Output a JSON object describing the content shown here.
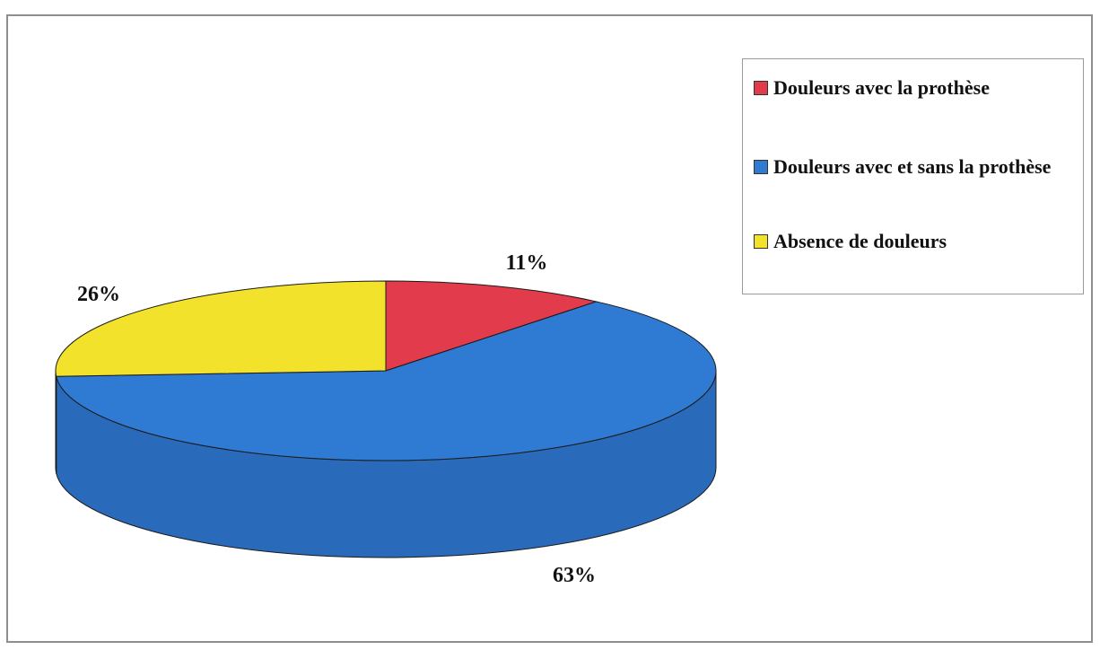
{
  "chart_data": {
    "type": "pie",
    "style": "3d",
    "title": "",
    "categories": [
      "Douleurs avec la prothèse",
      "Douleurs avec et sans la prothèse",
      "Absence de douleurs"
    ],
    "values": [
      11,
      63,
      26
    ],
    "value_labels": [
      "11%",
      "63%",
      "26%"
    ],
    "colors": [
      "#e23b4b",
      "#2f7ad3",
      "#f2e22c"
    ],
    "legend_position": "top-right"
  },
  "legend": {
    "items": [
      {
        "label": "Douleurs avec la prothèse",
        "color": "#e23b4b"
      },
      {
        "label": "Douleurs avec et sans la prothèse",
        "color": "#2f7ad3"
      },
      {
        "label": "Absence de douleurs",
        "color": "#f2e22c"
      }
    ]
  }
}
